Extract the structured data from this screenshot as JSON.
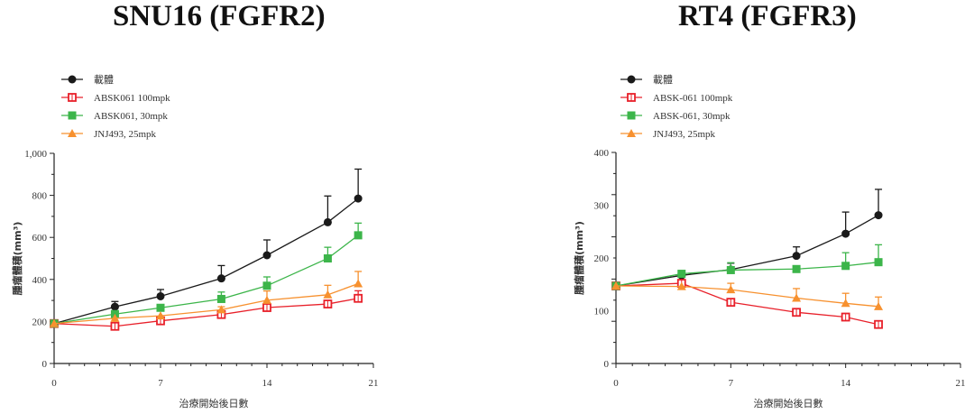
{
  "chart_data": [
    {
      "type": "line",
      "title": "SNU16 (FGFR2)",
      "xlabel": "治療開始後日數",
      "ylabel": "腫瘤體積(mm³)",
      "xlim": [
        0,
        21
      ],
      "ylim": [
        0,
        1000
      ],
      "xticks": [
        "0",
        "7",
        "14",
        "21"
      ],
      "yticks": [
        "0",
        "200",
        "400",
        "600",
        "800",
        "1,000"
      ],
      "x": [
        0,
        4,
        7,
        11,
        14,
        18,
        20
      ],
      "legend": "top-left",
      "series": [
        {
          "name": "載體",
          "color": "#1a1a1a",
          "marker": "circle",
          "values": [
            190,
            270,
            320,
            405,
            515,
            672,
            785
          ],
          "err": [
            0,
            295,
            352,
            466,
            588,
            797,
            925
          ]
        },
        {
          "name": "ABSK061 100mpk",
          "color": "#e8202a",
          "marker": "open-square",
          "values": [
            190,
            177,
            203,
            233,
            266,
            283,
            310
          ],
          "err": [
            0,
            0,
            0,
            0,
            0,
            0,
            346
          ]
        },
        {
          "name": "ABSK061, 30mpk",
          "color": "#3cb54a",
          "marker": "square",
          "values": [
            190,
            235,
            265,
            307,
            370,
            500,
            610
          ],
          "err": [
            0,
            0,
            0,
            340,
            412,
            553,
            668
          ]
        },
        {
          "name": "JNJ493, 25mpk",
          "color": "#f7912f",
          "marker": "triangle",
          "values": [
            190,
            215,
            227,
            256,
            301,
            327,
            380
          ],
          "err": [
            0,
            0,
            0,
            270,
            345,
            372,
            438
          ]
        }
      ]
    },
    {
      "type": "line",
      "title": "RT4 (FGFR3)",
      "xlabel": "治療開始後日數",
      "ylabel": "腫瘤體積(mm³)",
      "xlim": [
        0,
        21
      ],
      "ylim": [
        0,
        400
      ],
      "xticks": [
        "0",
        "7",
        "14",
        "21"
      ],
      "yticks": [
        "0",
        "100",
        "200",
        "300",
        "400"
      ],
      "x": [
        0,
        4,
        7,
        11,
        14,
        16
      ],
      "legend": "top-left",
      "series": [
        {
          "name": "載體",
          "color": "#1a1a1a",
          "marker": "circle",
          "values": [
            147,
            167,
            178,
            204,
            246,
            281
          ],
          "err": [
            0,
            0,
            190,
            221,
            287,
            330
          ]
        },
        {
          "name": "ABSK-061 100mpk",
          "color": "#e8202a",
          "marker": "open-square",
          "values": [
            147,
            152,
            116,
            97,
            88,
            74
          ],
          "err": [
            0,
            0,
            0,
            0,
            0,
            0
          ]
        },
        {
          "name": "ABSK-061, 30mpk",
          "color": "#3cb54a",
          "marker": "square",
          "values": [
            147,
            170,
            177,
            179,
            185,
            192
          ],
          "err": [
            0,
            0,
            191,
            0,
            210,
            225
          ]
        },
        {
          "name": "JNJ493, 25mpk",
          "color": "#f7912f",
          "marker": "triangle",
          "values": [
            147,
            146,
            140,
            124,
            114,
            108
          ],
          "err": [
            0,
            0,
            152,
            142,
            133,
            126
          ]
        }
      ]
    }
  ]
}
